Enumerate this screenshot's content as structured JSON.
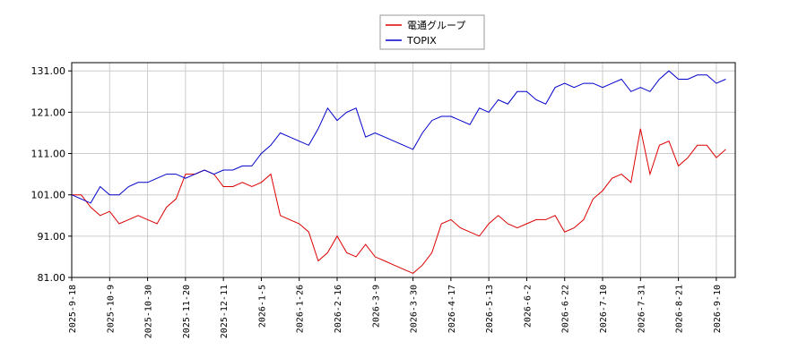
{
  "chart_data": {
    "type": "line",
    "categories": [
      "2025-9-18",
      null,
      null,
      null,
      "2025-10-9",
      null,
      null,
      null,
      "2025-10-30",
      null,
      null,
      null,
      "2025-11-20",
      null,
      null,
      null,
      "2025-12-11",
      null,
      null,
      null,
      "2026-1-5",
      null,
      null,
      null,
      "2026-1-26",
      null,
      null,
      null,
      "2026-2-16",
      null,
      null,
      null,
      "2026-3-9",
      null,
      null,
      null,
      "2026-3-30",
      null,
      null,
      null,
      "2026-4-17",
      null,
      null,
      null,
      "2026-5-13",
      null,
      null,
      null,
      "2026-6-2",
      null,
      null,
      null,
      "2026-6-22",
      null,
      null,
      null,
      "2026-7-10",
      null,
      null,
      null,
      "2026-7-31",
      null,
      null,
      null,
      "2026-8-21",
      null,
      null,
      null,
      "2026-9-10",
      null
    ],
    "series": [
      {
        "name": "電通グループ",
        "color": "#dd0000",
        "values": [
          101,
          101,
          98,
          96,
          97,
          94,
          95,
          96,
          95,
          94,
          98,
          100,
          106,
          106,
          107,
          106,
          103,
          103,
          104,
          103,
          104,
          106,
          96,
          95,
          94,
          92,
          85,
          87,
          91,
          87,
          86,
          89,
          86,
          85,
          84,
          83,
          82,
          84,
          87,
          94,
          95,
          93,
          92,
          91,
          94,
          96,
          94,
          93,
          94,
          95,
          95,
          96,
          92,
          93,
          95,
          100,
          102,
          105,
          106,
          104,
          117,
          106,
          113,
          114,
          108,
          110,
          113,
          113,
          110,
          112
        ]
      },
      {
        "name": "TOPIX",
        "color": "#0000cc",
        "values": [
          101,
          100,
          99,
          103,
          101,
          101,
          103,
          104,
          104,
          105,
          106,
          106,
          105,
          106,
          107,
          106,
          107,
          107,
          108,
          108,
          111,
          113,
          116,
          115,
          114,
          113,
          117,
          122,
          119,
          121,
          122,
          115,
          116,
          115,
          114,
          113,
          112,
          116,
          119,
          120,
          120,
          119,
          118,
          122,
          121,
          124,
          123,
          126,
          126,
          124,
          123,
          127,
          128,
          127,
          128,
          128,
          127,
          128,
          129,
          126,
          127,
          126,
          129,
          131,
          129,
          129,
          130,
          130,
          128,
          129
        ]
      }
    ],
    "ylim": [
      81,
      133
    ],
    "yticks": [
      {
        "value": 81,
        "label": "81.00"
      },
      {
        "value": 91,
        "label": "91.00"
      },
      {
        "value": 101,
        "label": "101.00"
      },
      {
        "value": 111,
        "label": "111.00"
      },
      {
        "value": 121,
        "label": "121.00"
      },
      {
        "value": 131,
        "label": "131.00"
      }
    ],
    "grid": true,
    "legend": "top"
  }
}
